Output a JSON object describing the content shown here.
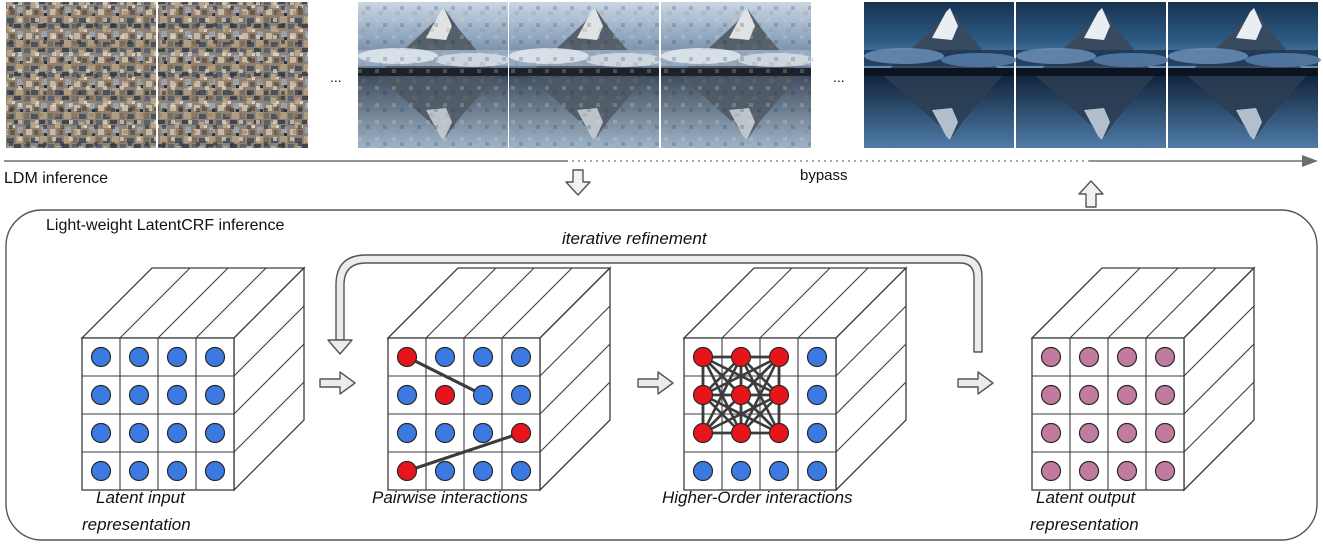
{
  "labels": {
    "ldm_inference": "LDM inference",
    "bypass": "bypass",
    "latentcrf_title": "Light-weight LatentCRF inference",
    "iterative_refinement": "iterative refinement",
    "latent_input_line1": "Latent input",
    "latent_input_line2": "representation",
    "pairwise": "Pairwise interactions",
    "higher_order": "Higher-Order interactions",
    "latent_output_line1": "Latent output",
    "latent_output_line2": "representation",
    "ellipsis_1": "...",
    "ellipsis_2": "..."
  },
  "colors": {
    "node_blue": "#3b7ae0",
    "node_red": "#e8141b",
    "node_mauve": "#c07b9e",
    "line_dark": "#3c3c3c",
    "arrow_fill": "#ececec"
  },
  "image_strip": [
    {
      "kind": "noise"
    },
    {
      "kind": "noise"
    },
    {
      "kind": "mountain-noisy"
    },
    {
      "kind": "mountain-noisy"
    },
    {
      "kind": "mountain-noisy"
    },
    {
      "kind": "mountain-clean"
    },
    {
      "kind": "mountain-clean"
    },
    {
      "kind": "mountain-clean"
    }
  ],
  "grids": {
    "latent_input": [
      [
        "blue",
        "blue",
        "blue",
        "blue"
      ],
      [
        "blue",
        "blue",
        "blue",
        "blue"
      ],
      [
        "blue",
        "blue",
        "blue",
        "blue"
      ],
      [
        "blue",
        "blue",
        "blue",
        "blue"
      ]
    ],
    "pairwise": [
      [
        "red",
        "blue",
        "blue",
        "blue"
      ],
      [
        "blue",
        "red",
        "blue",
        "blue"
      ],
      [
        "blue",
        "blue",
        "blue",
        "red"
      ],
      [
        "red",
        "blue",
        "blue",
        "blue"
      ]
    ],
    "higher_order": [
      [
        "red",
        "red",
        "red",
        "blue"
      ],
      [
        "red",
        "red",
        "red",
        "blue"
      ],
      [
        "red",
        "red",
        "red",
        "blue"
      ],
      [
        "blue",
        "blue",
        "blue",
        "blue"
      ]
    ],
    "latent_output": [
      [
        "mauve",
        "mauve",
        "mauve",
        "mauve"
      ],
      [
        "mauve",
        "mauve",
        "mauve",
        "mauve"
      ],
      [
        "mauve",
        "mauve",
        "mauve",
        "mauve"
      ],
      [
        "mauve",
        "mauve",
        "mauve",
        "mauve"
      ]
    ]
  },
  "pairwise_links": [
    [
      [
        0,
        0
      ],
      [
        1,
        2
      ]
    ],
    [
      [
        3,
        0
      ],
      [
        2,
        3
      ]
    ]
  ]
}
